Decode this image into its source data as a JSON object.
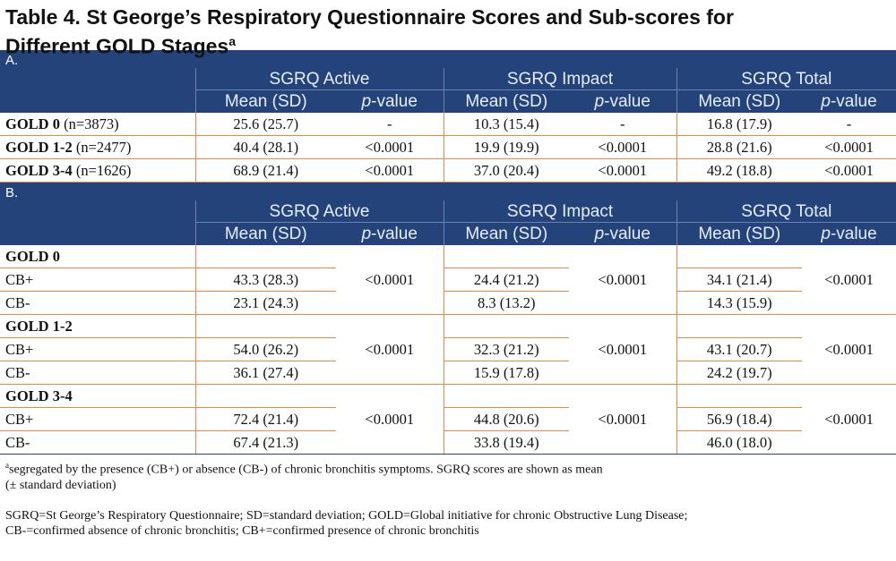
{
  "title": {
    "line1": "Table 4. St George’s Respiratory Questionnaire Scores and Sub-scores for",
    "line2": "Different GOLD Stages",
    "sup": "a"
  },
  "groups": [
    "SGRQ Active",
    "SGRQ Impact",
    "SGRQ Total"
  ],
  "sub": {
    "mean": "Mean (SD)",
    "p": "p",
    "pval": "-value"
  },
  "sectionA": {
    "label": "A.",
    "rows": [
      {
        "stage": "GOLD 0",
        "n": "(n=3873)",
        "v": [
          "25.6 (25.7)",
          "-",
          "10.3 (15.4)",
          "-",
          "16.8 (17.9)",
          "-"
        ]
      },
      {
        "stage": "GOLD 1-2",
        "n": "(n=2477)",
        "v": [
          "40.4 (28.1)",
          "<0.0001",
          "19.9 (19.9)",
          "<0.0001",
          "28.8 (21.6)",
          "<0.0001"
        ]
      },
      {
        "stage": "GOLD 3-4",
        "n": "(n=1626)",
        "v": [
          "68.9 (21.4)",
          "<0.0001",
          "37.0 (20.4)",
          "<0.0001",
          "49.2 (18.8)",
          "<0.0001"
        ]
      }
    ]
  },
  "sectionB": {
    "label": "B.",
    "groups": [
      {
        "stage": "GOLD 0",
        "p": [
          "<0.0001",
          "<0.0001",
          "<0.0001"
        ],
        "rows": [
          {
            "label": "CB+",
            "v": [
              "43.3 (28.3)",
              "24.4 (21.2)",
              "34.1 (21.4)"
            ]
          },
          {
            "label": "CB-",
            "v": [
              "23.1 (24.3)",
              "8.3 (13.2)",
              "14.3 (15.9)"
            ]
          }
        ]
      },
      {
        "stage": "GOLD 1-2",
        "p": [
          "<0.0001",
          "<0.0001",
          "<0.0001"
        ],
        "rows": [
          {
            "label": "CB+",
            "v": [
              "54.0 (26.2)",
              "32.3 (21.2)",
              "43.1 (20.7)"
            ]
          },
          {
            "label": "CB-",
            "v": [
              "36.1 (27.4)",
              "15.9 (17.8)",
              "24.2 (19.7)"
            ]
          }
        ]
      },
      {
        "stage": "GOLD 3-4",
        "p": [
          "<0.0001",
          "<0.0001",
          "<0.0001"
        ],
        "rows": [
          {
            "label": "CB+",
            "v": [
              "72.4 (21.4)",
              "44.8 (20.6)",
              "56.9 (18.4)"
            ]
          },
          {
            "label": "CB-",
            "v": [
              "67.4 (21.3)",
              "33.8 (19.4)",
              "46.0 (18.0)"
            ]
          }
        ]
      }
    ]
  },
  "footnotes": {
    "sup": "a",
    "note1": "segregated by the presence (CB+) or absence (CB-) of chronic bronchitis symptoms.  SGRQ scores are shown as mean",
    "note1b": "(± standard deviation)",
    "abbr1": "SGRQ=St George’s Respiratory Questionnaire; SD=standard deviation; GOLD=Global initiative for chronic Obstructive Lung Disease;",
    "abbr2": "CB-=confirmed absence of chronic bronchitis; CB+=confirmed presence of chronic bronchitis"
  }
}
